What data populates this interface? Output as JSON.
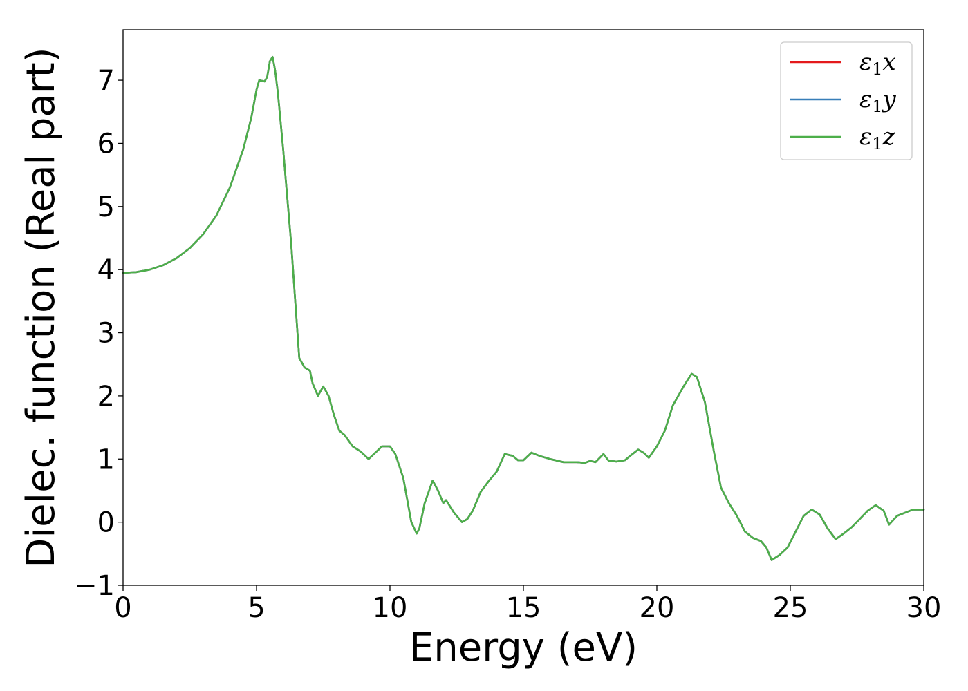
{
  "chart_data": {
    "type": "line",
    "title": "",
    "xlabel": "Energy (eV)",
    "ylabel": "Dielec. function (Real part)",
    "xlim": [
      0,
      30
    ],
    "ylim": [
      -1,
      7.8
    ],
    "xticks": [
      0,
      5,
      10,
      15,
      20,
      25,
      30
    ],
    "xtick_labels": [
      "0",
      "5",
      "10",
      "15",
      "20",
      "25",
      "30"
    ],
    "yticks": [
      -1,
      0,
      1,
      2,
      3,
      4,
      5,
      6,
      7
    ],
    "ytick_labels": [
      "−1",
      "0",
      "1",
      "2",
      "3",
      "4",
      "5",
      "6",
      "7"
    ],
    "grid": false,
    "legend_position": "top-right",
    "x": [
      0,
      0.5,
      1,
      1.5,
      2,
      2.5,
      3,
      3.5,
      4,
      4.5,
      4.8,
      5.0,
      5.1,
      5.3,
      5.4,
      5.5,
      5.6,
      5.7,
      5.8,
      6.0,
      6.3,
      6.6,
      6.8,
      7.0,
      7.1,
      7.3,
      7.5,
      7.7,
      7.9,
      8.1,
      8.3,
      8.6,
      8.9,
      9.2,
      9.5,
      9.7,
      10.0,
      10.2,
      10.5,
      10.8,
      11.0,
      11.1,
      11.3,
      11.6,
      11.8,
      12.0,
      12.1,
      12.4,
      12.7,
      12.9,
      13.1,
      13.4,
      13.7,
      14.0,
      14.3,
      14.6,
      14.8,
      15.0,
      15.3,
      15.6,
      16.0,
      16.5,
      17.0,
      17.3,
      17.5,
      17.7,
      18.0,
      18.2,
      18.5,
      18.8,
      19.0,
      19.3,
      19.5,
      19.7,
      20.0,
      20.3,
      20.6,
      21.0,
      21.3,
      21.5,
      21.8,
      22.1,
      22.4,
      22.7,
      23.0,
      23.3,
      23.6,
      23.9,
      24.1,
      24.3,
      24.6,
      24.9,
      25.2,
      25.5,
      25.8,
      26.1,
      26.4,
      26.7,
      27.0,
      27.3,
      27.6,
      27.9,
      28.2,
      28.5,
      28.7,
      29.0,
      29.3,
      29.6,
      30.0
    ],
    "series": [
      {
        "name": "ε₁x",
        "color": "#e41a1c",
        "values": [
          3.95,
          3.96,
          4.0,
          4.07,
          4.18,
          4.34,
          4.56,
          4.86,
          5.3,
          5.9,
          6.4,
          6.85,
          7.0,
          6.98,
          7.05,
          7.3,
          7.37,
          7.15,
          6.8,
          5.9,
          4.4,
          2.6,
          2.45,
          2.4,
          2.2,
          2.0,
          2.15,
          2.0,
          1.7,
          1.45,
          1.38,
          1.2,
          1.12,
          1.0,
          1.12,
          1.2,
          1.2,
          1.08,
          0.7,
          0.0,
          -0.18,
          -0.1,
          0.3,
          0.66,
          0.5,
          0.3,
          0.35,
          0.15,
          0.0,
          0.05,
          0.18,
          0.48,
          0.65,
          0.8,
          1.08,
          1.05,
          0.98,
          0.98,
          1.1,
          1.05,
          1.0,
          0.95,
          0.95,
          0.94,
          0.97,
          0.95,
          1.08,
          0.97,
          0.96,
          0.98,
          1.05,
          1.15,
          1.1,
          1.02,
          1.2,
          1.45,
          1.85,
          2.15,
          2.35,
          2.3,
          1.9,
          1.2,
          0.55,
          0.3,
          0.1,
          -0.15,
          -0.25,
          -0.3,
          -0.4,
          -0.6,
          -0.52,
          -0.4,
          -0.15,
          0.1,
          0.2,
          0.12,
          -0.1,
          -0.27,
          -0.18,
          -0.08,
          0.05,
          0.18,
          0.27,
          0.18,
          -0.04,
          0.1,
          0.15,
          0.2,
          0.2
        ]
      },
      {
        "name": "ε₁y",
        "color": "#377eb8",
        "values": [
          3.95,
          3.96,
          4.0,
          4.07,
          4.18,
          4.34,
          4.56,
          4.86,
          5.3,
          5.9,
          6.4,
          6.85,
          7.0,
          6.98,
          7.05,
          7.3,
          7.37,
          7.15,
          6.8,
          5.9,
          4.4,
          2.6,
          2.45,
          2.4,
          2.2,
          2.0,
          2.15,
          2.0,
          1.7,
          1.45,
          1.38,
          1.2,
          1.12,
          1.0,
          1.12,
          1.2,
          1.2,
          1.08,
          0.7,
          0.0,
          -0.18,
          -0.1,
          0.3,
          0.66,
          0.5,
          0.3,
          0.35,
          0.15,
          0.0,
          0.05,
          0.18,
          0.48,
          0.65,
          0.8,
          1.08,
          1.05,
          0.98,
          0.98,
          1.1,
          1.05,
          1.0,
          0.95,
          0.95,
          0.94,
          0.97,
          0.95,
          1.08,
          0.97,
          0.96,
          0.98,
          1.05,
          1.15,
          1.1,
          1.02,
          1.2,
          1.45,
          1.85,
          2.15,
          2.35,
          2.3,
          1.9,
          1.2,
          0.55,
          0.3,
          0.1,
          -0.15,
          -0.25,
          -0.3,
          -0.4,
          -0.6,
          -0.52,
          -0.4,
          -0.15,
          0.1,
          0.2,
          0.12,
          -0.1,
          -0.27,
          -0.18,
          -0.08,
          0.05,
          0.18,
          0.27,
          0.18,
          -0.04,
          0.1,
          0.15,
          0.2,
          0.2
        ]
      },
      {
        "name": "ε₁z",
        "color": "#4daf4a",
        "values": [
          3.95,
          3.96,
          4.0,
          4.07,
          4.18,
          4.34,
          4.56,
          4.86,
          5.3,
          5.9,
          6.4,
          6.85,
          7.0,
          6.98,
          7.05,
          7.3,
          7.37,
          7.15,
          6.8,
          5.9,
          4.4,
          2.6,
          2.45,
          2.4,
          2.2,
          2.0,
          2.15,
          2.0,
          1.7,
          1.45,
          1.38,
          1.2,
          1.12,
          1.0,
          1.12,
          1.2,
          1.2,
          1.08,
          0.7,
          0.0,
          -0.18,
          -0.1,
          0.3,
          0.66,
          0.5,
          0.3,
          0.35,
          0.15,
          0.0,
          0.05,
          0.18,
          0.48,
          0.65,
          0.8,
          1.08,
          1.05,
          0.98,
          0.98,
          1.1,
          1.05,
          1.0,
          0.95,
          0.95,
          0.94,
          0.97,
          0.95,
          1.08,
          0.97,
          0.96,
          0.98,
          1.05,
          1.15,
          1.1,
          1.02,
          1.2,
          1.45,
          1.85,
          2.15,
          2.35,
          2.3,
          1.9,
          1.2,
          0.55,
          0.3,
          0.1,
          -0.15,
          -0.25,
          -0.3,
          -0.4,
          -0.6,
          -0.52,
          -0.4,
          -0.15,
          0.1,
          0.2,
          0.12,
          -0.1,
          -0.27,
          -0.18,
          -0.08,
          0.05,
          0.18,
          0.27,
          0.18,
          -0.04,
          0.1,
          0.15,
          0.2,
          0.2
        ]
      }
    ],
    "legend": [
      {
        "base": "ε",
        "sub": "1",
        "axis": "x"
      },
      {
        "base": "ε",
        "sub": "1",
        "axis": "y"
      },
      {
        "base": "ε",
        "sub": "1",
        "axis": "z"
      }
    ]
  }
}
